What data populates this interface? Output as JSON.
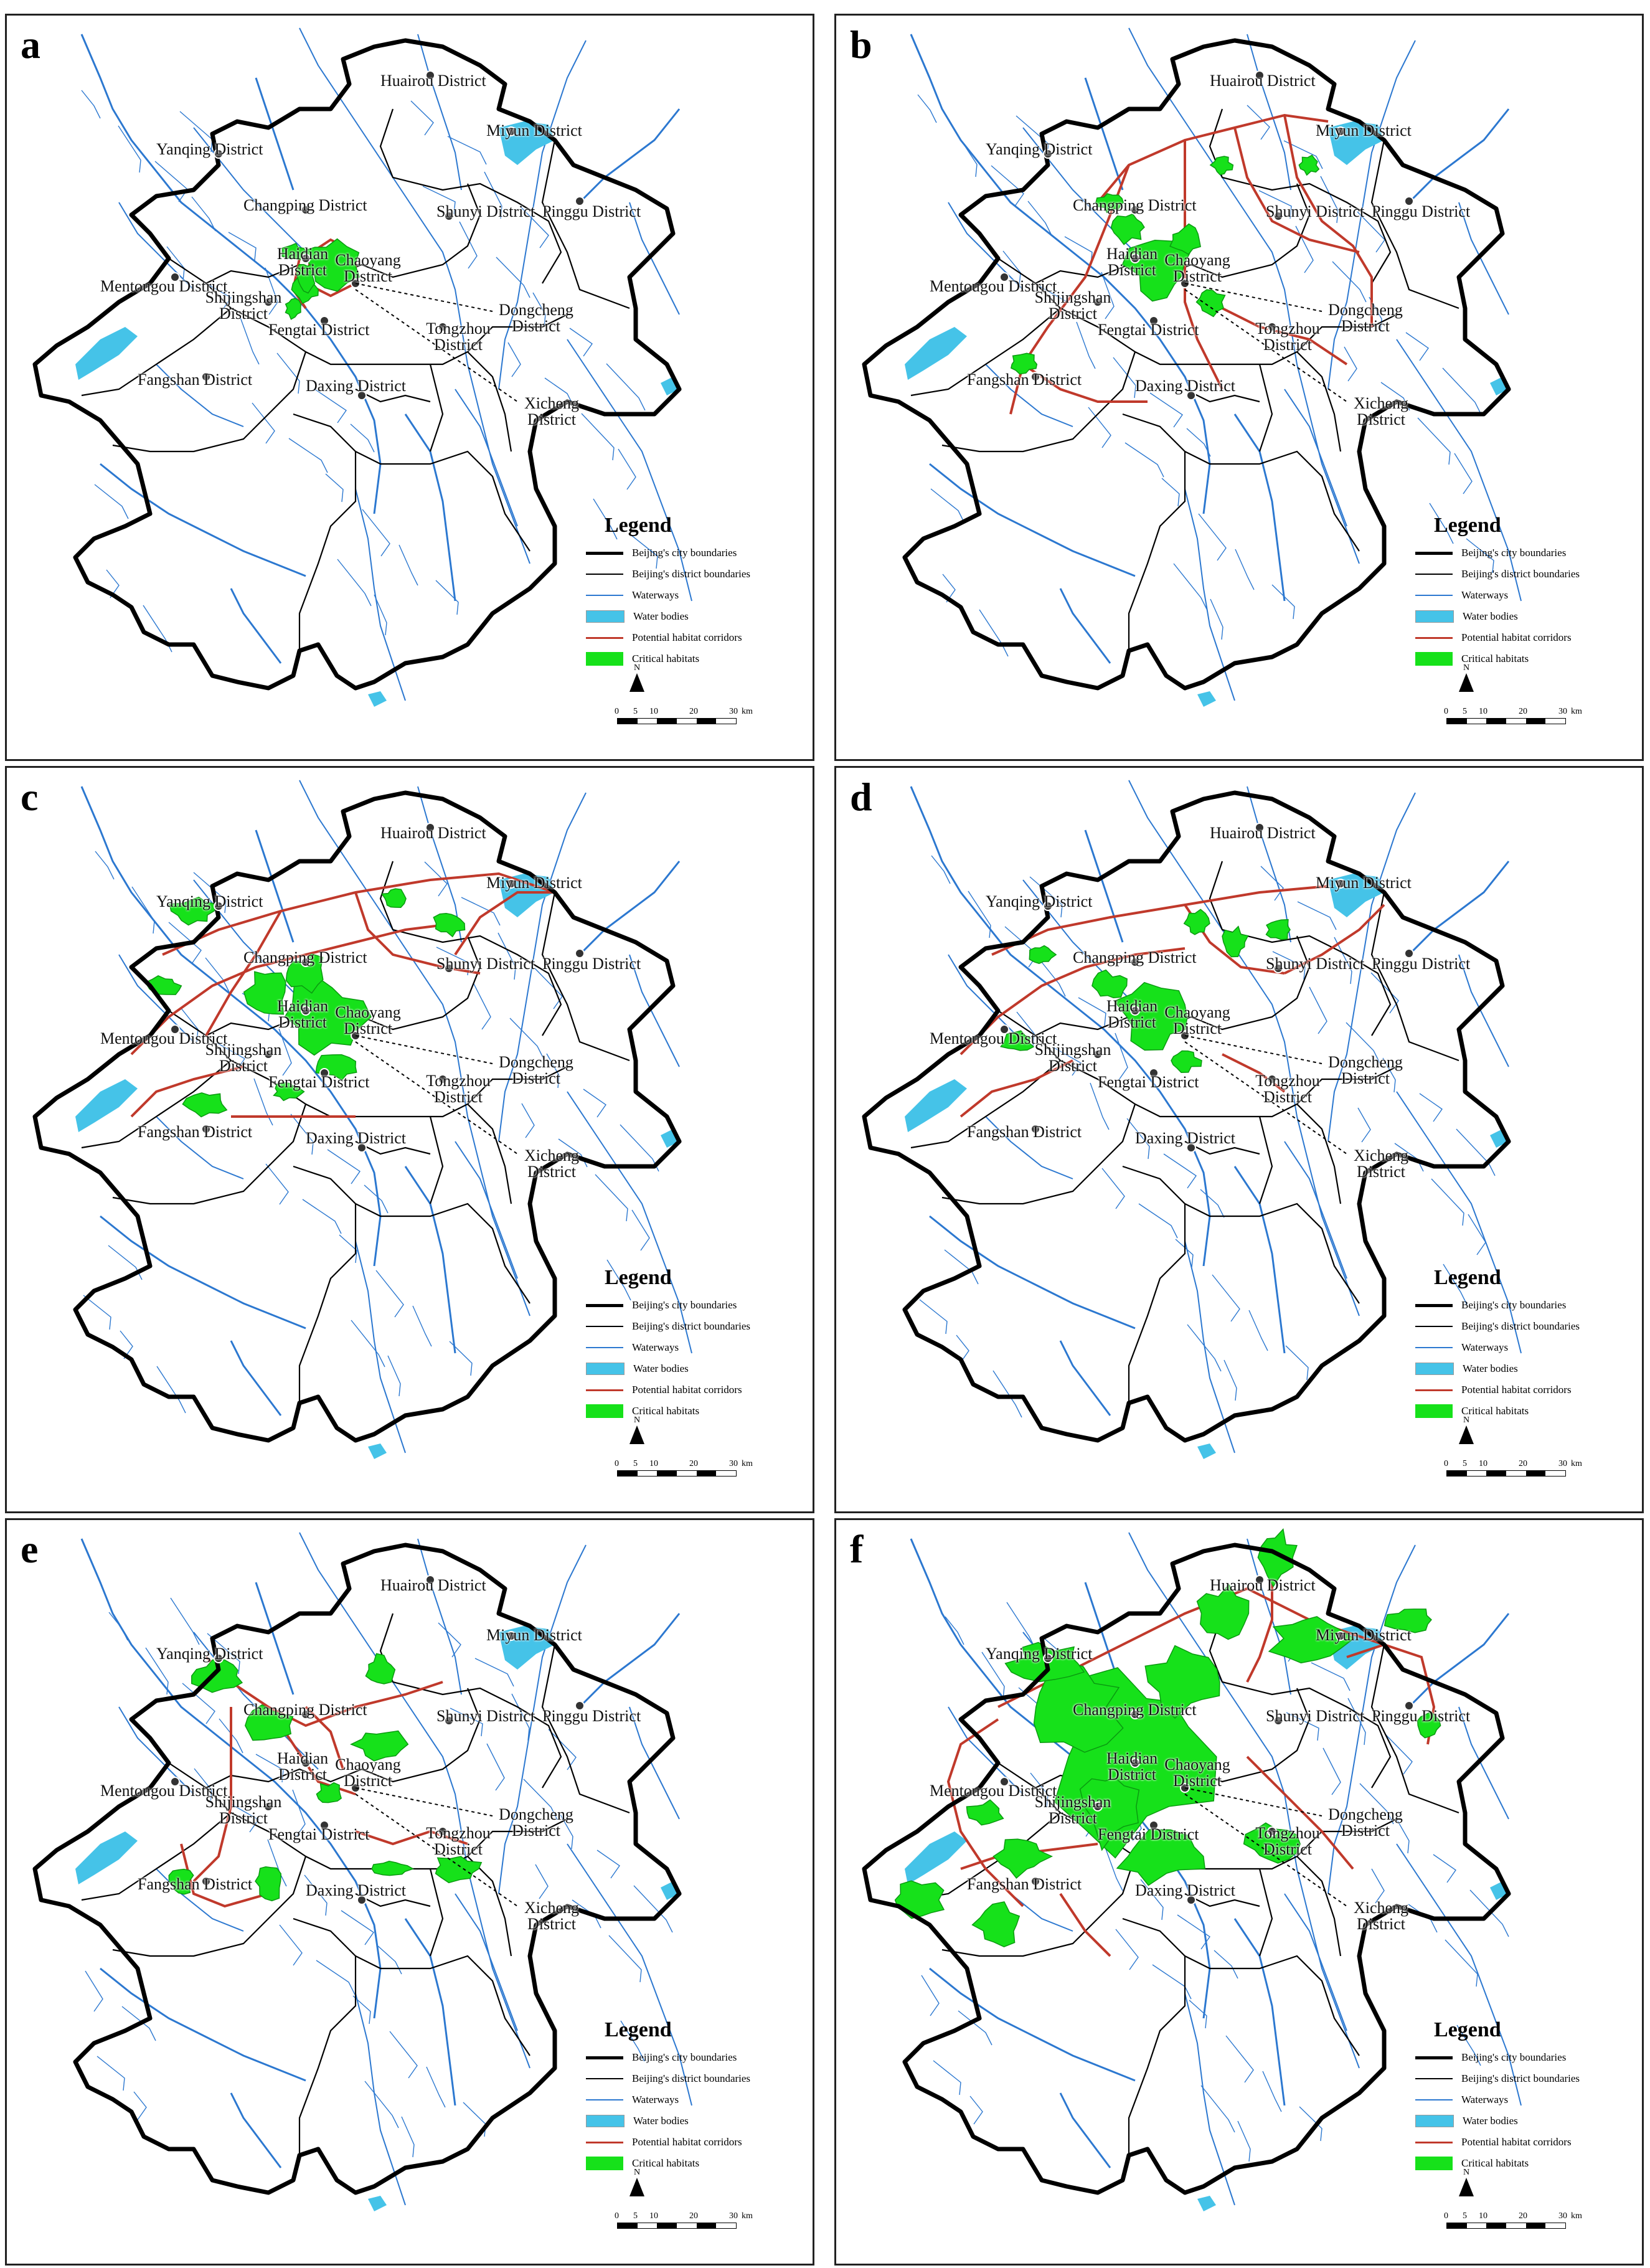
{
  "colors": {
    "city_boundary": "#000000",
    "district_boundary": "#000000",
    "waterway": "#2c78d0",
    "water_body": "#45c3e8",
    "corridor": "#c0392b",
    "habitat": "#16e11a"
  },
  "panels": [
    {
      "letter": "a"
    },
    {
      "letter": "b"
    },
    {
      "letter": "c"
    },
    {
      "letter": "d"
    },
    {
      "letter": "e"
    },
    {
      "letter": "f"
    }
  ],
  "districts": {
    "huairou": "Huairou District",
    "miyun": "Miyun District",
    "yanqing": "Yanqing District",
    "changping": "Changping District",
    "shunyi": "Shunyi District",
    "pinggu": "Pinggu District",
    "haidian": "Haidian District",
    "chaoyang": "Chaoyang District",
    "mentougou": "Mentougou District",
    "shijingshan": "Shijingshan District",
    "fengtai": "Fengtai District",
    "tongzhou": "Tongzhou District",
    "fangshan": "Fangshan District",
    "daxing": "Daxing District",
    "dongcheng": "Dongcheng District",
    "xicheng": "Xicheng District"
  },
  "legend": {
    "title": "Legend",
    "city_boundaries": "Beijing's city boundaries",
    "district_boundaries": "Beijing's district boundaries",
    "waterways": "Waterways",
    "water_bodies": "Water bodies",
    "corridors": "Potential habitat corridors",
    "habitats": "Critical habitats"
  },
  "north_label": "N",
  "scale": {
    "t0": "0",
    "t1": "5",
    "t2": "10",
    "t3": "20",
    "t4": "30",
    "unit": "km"
  }
}
